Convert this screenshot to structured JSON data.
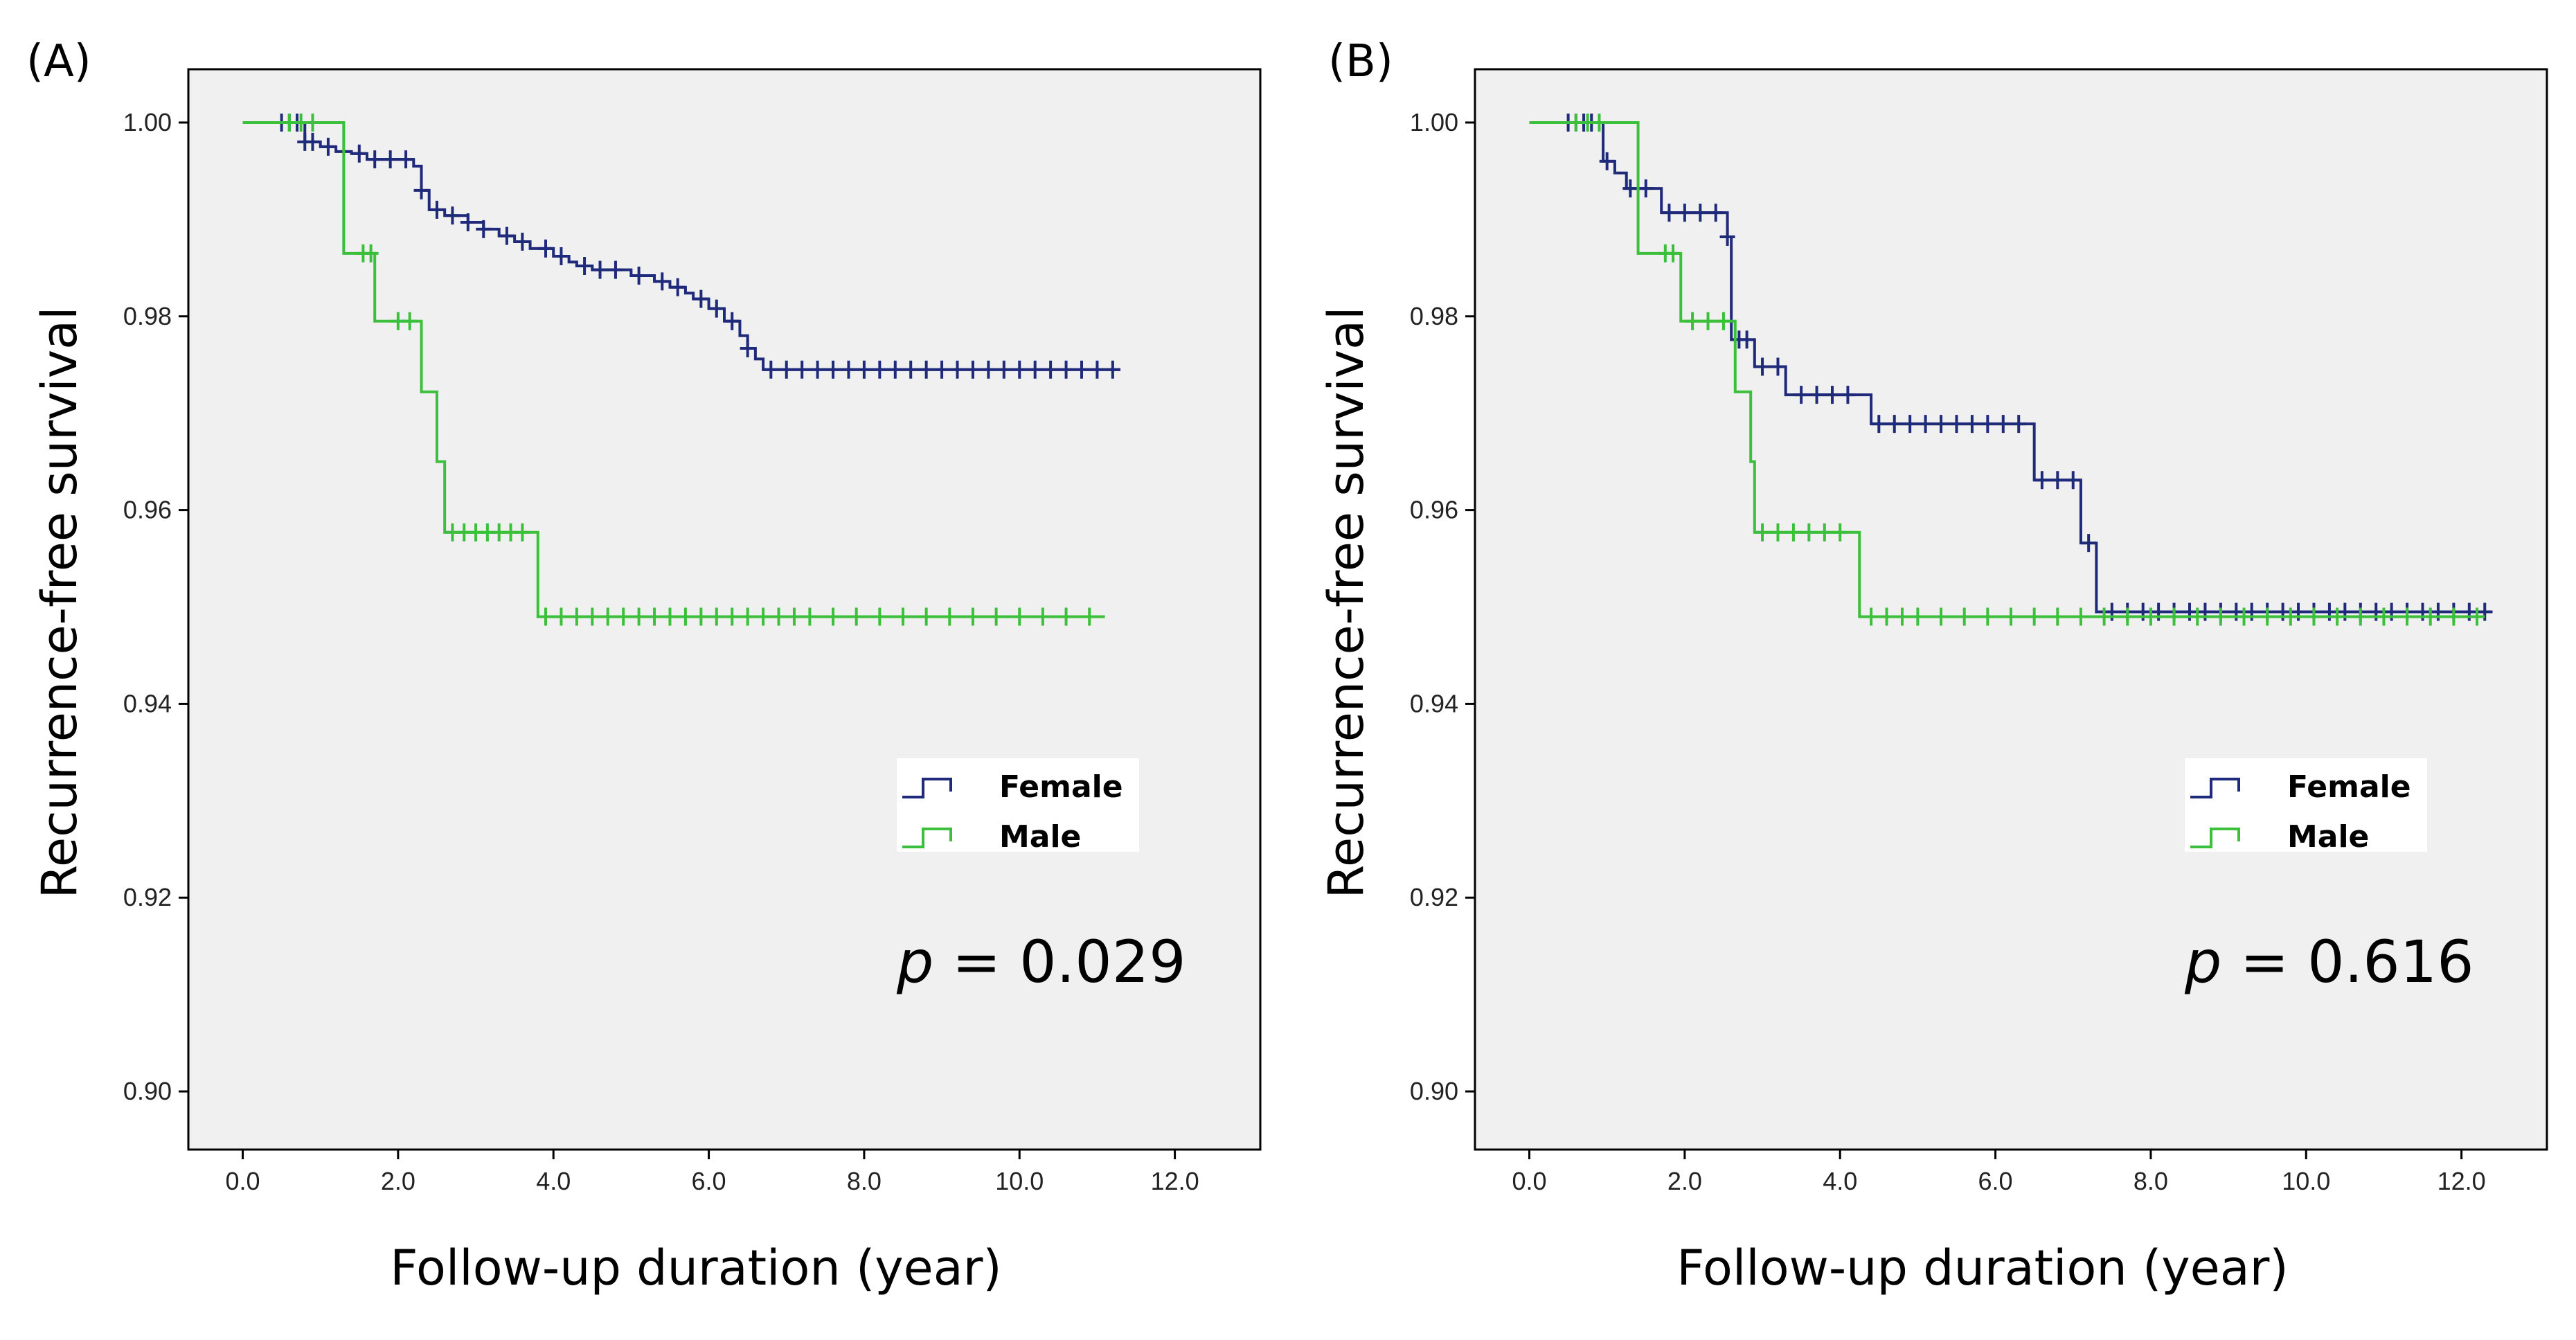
{
  "chart_data": [
    {
      "type": "line",
      "panel": "(A)",
      "xlabel": "Follow-up duration (year)",
      "ylabel": "Recurrence-free survival",
      "xlim": [
        -0.7,
        13.1
      ],
      "ylim": [
        0.894,
        1.0055
      ],
      "xticks": [
        0,
        2,
        4,
        6,
        8,
        10,
        12
      ],
      "xtick_labels": [
        "0.0",
        "2.0",
        "4.0",
        "6.0",
        "8.0",
        "10.0",
        "12.0"
      ],
      "yticks": [
        0.9,
        0.92,
        0.94,
        0.96,
        0.98,
        1.0
      ],
      "ytick_labels": [
        "0.90",
        "0.92",
        "0.94",
        "0.96",
        "0.98",
        "1.00"
      ],
      "grid": false,
      "legend_position": "lower-right",
      "annotation": {
        "p_symbol": "p",
        "text": " = 0.029"
      },
      "series": [
        {
          "name": "Female",
          "color": "#1f2a7a",
          "x": [
            0,
            0.8,
            1.0,
            1.2,
            1.4,
            1.6,
            2.2,
            2.3,
            2.4,
            2.6,
            2.9,
            3.1,
            3.3,
            3.5,
            3.7,
            4.0,
            4.2,
            4.3,
            4.5,
            5.0,
            5.3,
            5.5,
            5.7,
            5.8,
            6.0,
            6.2,
            6.4,
            6.5,
            6.6,
            6.7,
            11.3
          ],
          "y": [
            1.0,
            0.998,
            0.9975,
            0.997,
            0.9968,
            0.9962,
            0.9955,
            0.993,
            0.991,
            0.9904,
            0.9897,
            0.989,
            0.9883,
            0.9877,
            0.987,
            0.9862,
            0.9856,
            0.9852,
            0.9848,
            0.9842,
            0.9836,
            0.983,
            0.9824,
            0.9818,
            0.9808,
            0.9795,
            0.978,
            0.9767,
            0.9756,
            0.9745,
            0.9745
          ],
          "censor_x": [
            0.5,
            0.6,
            0.7,
            0.8,
            0.9,
            1.1,
            1.5,
            1.7,
            1.9,
            2.1,
            2.3,
            2.5,
            2.7,
            2.9,
            3.1,
            3.4,
            3.6,
            3.9,
            4.1,
            4.4,
            4.6,
            4.8,
            5.1,
            5.4,
            5.6,
            5.9,
            6.1,
            6.3,
            6.5,
            6.8,
            7.0,
            7.2,
            7.4,
            7.6,
            7.8,
            8.0,
            8.2,
            8.4,
            8.6,
            8.8,
            9.0,
            9.2,
            9.4,
            9.6,
            9.8,
            10.0,
            10.2,
            10.4,
            10.6,
            10.8,
            11.0,
            11.2
          ]
        },
        {
          "name": "Male",
          "color": "#3cc03c",
          "x": [
            0,
            1.3,
            1.7,
            2.3,
            2.5,
            2.6,
            3.8,
            11.1
          ],
          "y": [
            1.0,
            0.9865,
            0.9795,
            0.9722,
            0.965,
            0.9577,
            0.949,
            0.949
          ],
          "censor_x": [
            0.6,
            0.75,
            0.9,
            1.55,
            1.65,
            2.0,
            2.15,
            2.7,
            2.85,
            3.0,
            3.15,
            3.3,
            3.45,
            3.6,
            3.9,
            4.1,
            4.3,
            4.5,
            4.7,
            4.9,
            5.1,
            5.3,
            5.5,
            5.7,
            5.9,
            6.1,
            6.3,
            6.5,
            6.7,
            6.9,
            7.1,
            7.3,
            7.6,
            7.9,
            8.2,
            8.5,
            8.8,
            9.1,
            9.4,
            9.7,
            10.0,
            10.3,
            10.6,
            10.9
          ]
        }
      ],
      "legend": [
        {
          "label": "Female",
          "color": "#1f2a7a"
        },
        {
          "label": "Male",
          "color": "#3cc03c"
        }
      ]
    },
    {
      "type": "line",
      "panel": "(B)",
      "xlabel": "Follow-up duration (year)",
      "ylabel": "Recurrence-free survival",
      "xlim": [
        -0.7,
        13.1
      ],
      "ylim": [
        0.894,
        1.0055
      ],
      "xticks": [
        0,
        2,
        4,
        6,
        8,
        10,
        12
      ],
      "xtick_labels": [
        "0.0",
        "2.0",
        "4.0",
        "6.0",
        "8.0",
        "10.0",
        "12.0"
      ],
      "yticks": [
        0.9,
        0.92,
        0.94,
        0.96,
        0.98,
        1.0
      ],
      "ytick_labels": [
        "0.90",
        "0.92",
        "0.94",
        "0.96",
        "0.98",
        "1.00"
      ],
      "grid": false,
      "legend_position": "lower-right",
      "annotation": {
        "p_symbol": "p",
        "text": " = 0.616"
      },
      "series": [
        {
          "name": "Female",
          "color": "#1f2a7a",
          "x": [
            0,
            0.95,
            1.1,
            1.25,
            1.7,
            2.55,
            2.6,
            2.65,
            2.9,
            3.3,
            4.4,
            6.5,
            7.1,
            7.3,
            12.4
          ],
          "y": [
            1.0,
            0.996,
            0.9948,
            0.9932,
            0.9907,
            0.9882,
            0.9776,
            0.9776,
            0.9748,
            0.9719,
            0.9689,
            0.9631,
            0.9566,
            0.9495,
            0.9495
          ],
          "censor_x": [
            0.5,
            0.6,
            0.7,
            0.8,
            1.0,
            1.3,
            1.5,
            1.8,
            2.0,
            2.2,
            2.4,
            2.55,
            2.7,
            2.8,
            3.0,
            3.2,
            3.5,
            3.7,
            3.9,
            4.1,
            4.5,
            4.7,
            4.9,
            5.1,
            5.3,
            5.5,
            5.7,
            5.9,
            6.1,
            6.3,
            6.6,
            6.8,
            7.0,
            7.2,
            7.5,
            7.7,
            7.9,
            8.1,
            8.3,
            8.5,
            8.7,
            8.9,
            9.1,
            9.3,
            9.5,
            9.7,
            9.9,
            10.1,
            10.3,
            10.5,
            10.7,
            10.9,
            11.1,
            11.3,
            11.5,
            11.7,
            11.9,
            12.1,
            12.3
          ]
        },
        {
          "name": "Male",
          "color": "#3cc03c",
          "x": [
            0,
            1.4,
            1.95,
            2.65,
            2.85,
            2.9,
            4.25,
            12.3
          ],
          "y": [
            1.0,
            0.9865,
            0.9795,
            0.9722,
            0.965,
            0.9577,
            0.949,
            0.949
          ],
          "censor_x": [
            0.6,
            0.75,
            0.9,
            1.75,
            1.85,
            2.1,
            2.3,
            2.5,
            3.0,
            3.2,
            3.4,
            3.6,
            3.8,
            4.0,
            4.4,
            4.6,
            4.8,
            5.0,
            5.3,
            5.6,
            5.9,
            6.2,
            6.5,
            6.8,
            7.1,
            7.4,
            7.7,
            8.0,
            8.3,
            8.6,
            8.9,
            9.2,
            9.5,
            9.8,
            10.1,
            10.4,
            10.7,
            11.0,
            11.3,
            11.6,
            11.9,
            12.2
          ]
        }
      ],
      "legend": [
        {
          "label": "Female",
          "color": "#1f2a7a"
        },
        {
          "label": "Male",
          "color": "#3cc03c"
        }
      ]
    }
  ]
}
